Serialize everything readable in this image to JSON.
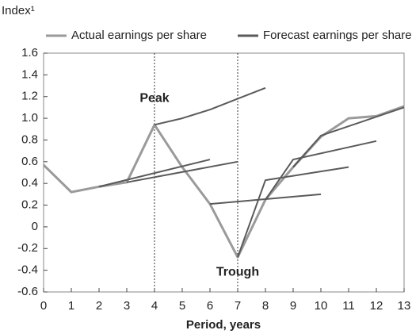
{
  "chart_data": {
    "type": "line",
    "y_axis_label": "Index¹",
    "x_axis_label": "Period, years",
    "xlim": [
      0,
      13
    ],
    "xticks": [
      0,
      1,
      2,
      3,
      4,
      5,
      6,
      7,
      8,
      9,
      10,
      11,
      12,
      13
    ],
    "ylim": [
      -0.6,
      1.6
    ],
    "yticks": [
      -0.6,
      -0.4,
      -0.2,
      0,
      0.2,
      0.4,
      0.6,
      0.8,
      {
        "value": 1.0,
        "label": "1.0"
      },
      1.2,
      1.4,
      1.6
    ],
    "vlines": [
      4,
      7
    ],
    "annotations": [
      {
        "text": "Peak",
        "x": 4,
        "y": 1.18
      },
      {
        "text": "Trough",
        "x": 7,
        "y": -0.42
      }
    ],
    "series": [
      {
        "name": "Actual earnings per share",
        "color": "#9a9a9a",
        "lines": [
          {
            "x": [
              0,
              1,
              2,
              3,
              4,
              5,
              6,
              7,
              8,
              9,
              10,
              11,
              12,
              13
            ],
            "values": [
              0.57,
              0.32,
              0.37,
              0.41,
              0.94,
              0.55,
              0.21,
              -0.28,
              0.25,
              0.55,
              0.83,
              1.0,
              1.02,
              1.11
            ]
          }
        ]
      },
      {
        "name": "Forecast earnings per share",
        "color": "#5a5a5a",
        "lines": [
          {
            "x": [
              2,
              6
            ],
            "values": [
              0.37,
              0.62
            ]
          },
          {
            "x": [
              3,
              7
            ],
            "values": [
              0.41,
              0.6
            ]
          },
          {
            "x": [
              4,
              5,
              6,
              7,
              8
            ],
            "values": [
              0.94,
              1.0,
              1.08,
              1.18,
              1.28
            ]
          },
          {
            "x": [
              6,
              10
            ],
            "values": [
              0.21,
              0.3
            ]
          },
          {
            "x": [
              7,
              8,
              11
            ],
            "values": [
              -0.28,
              0.43,
              0.55
            ]
          },
          {
            "x": [
              8,
              9,
              12
            ],
            "values": [
              0.25,
              0.62,
              0.79
            ]
          },
          {
            "x": [
              9,
              10,
              13
            ],
            "values": [
              0.55,
              0.84,
              1.1
            ]
          }
        ]
      }
    ]
  }
}
